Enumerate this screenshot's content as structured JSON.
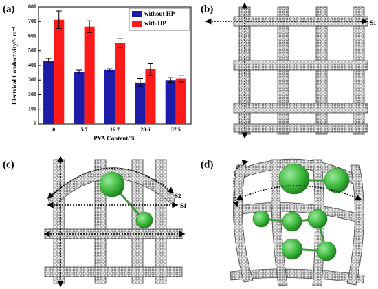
{
  "chart_data": {
    "type": "bar",
    "categories": [
      "0",
      "5.7",
      "16.7",
      "28.6",
      "37.5"
    ],
    "series": [
      {
        "name": "without HP",
        "color": "#1c1ca8",
        "values": [
          432,
          355,
          368,
          283,
          300
        ],
        "errors": [
          15,
          12,
          8,
          25,
          15
        ]
      },
      {
        "name": "with HP",
        "color": "#ff1a1a",
        "values": [
          712,
          665,
          553,
          372,
          308
        ],
        "errors": [
          60,
          40,
          30,
          40,
          20
        ]
      }
    ],
    "xlabel": "PVA Content/%",
    "ylabel": "Electrical Conductivity/S m⁻¹",
    "ylim": [
      0,
      800
    ],
    "yticks": [
      0,
      100,
      200,
      300,
      400,
      500,
      600,
      700,
      800
    ],
    "legend": "top-right"
  },
  "panel_labels": [
    "(a)",
    "(b)",
    "(c)",
    "(d)"
  ],
  "diagram_text": {
    "b_s1": "S1",
    "c_s2": "S2",
    "c_s1": "S1"
  }
}
